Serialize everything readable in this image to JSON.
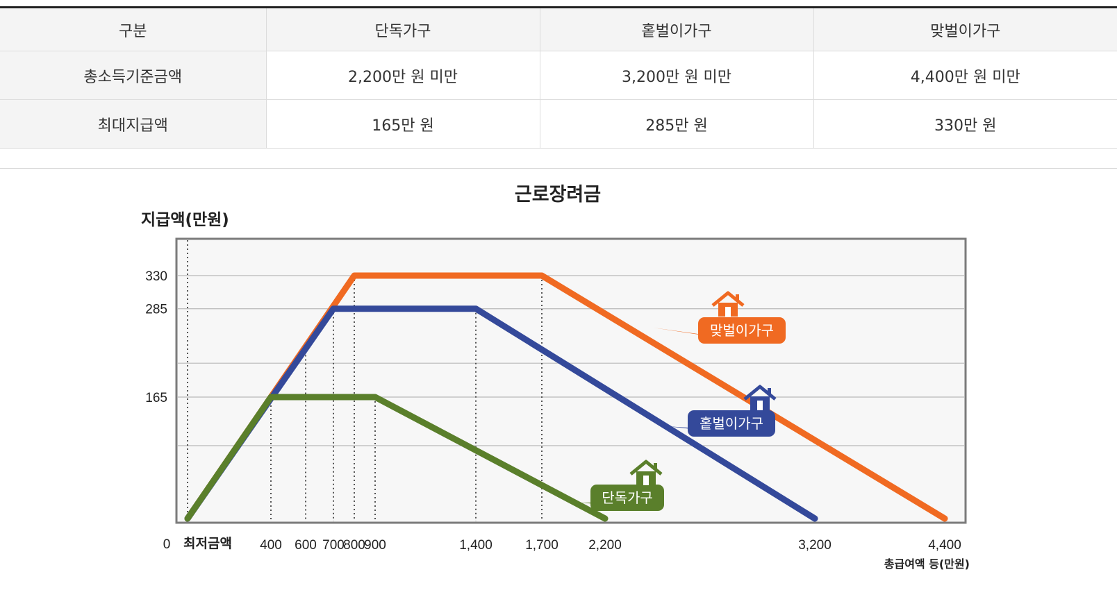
{
  "table": {
    "headers": [
      "구분",
      "단독가구",
      "홑벌이가구",
      "맞벌이가구"
    ],
    "rows": [
      [
        "총소득기준금액",
        "2,200만 원 미만",
        "3,200만 원 미만",
        "4,400만 원 미만"
      ],
      [
        "최대지급액",
        "165만 원",
        "285만 원",
        "330만 원"
      ]
    ]
  },
  "chart_data": {
    "type": "line",
    "title": "근로장려금",
    "ylabel": "지급액(만원)",
    "xlabel": "총급여액 등(만원)",
    "x_origin_label": "최저금액",
    "y_zero_label": "0",
    "xticks": [
      400,
      600,
      700,
      800,
      900,
      1400,
      1700,
      2200,
      3200,
      4400
    ],
    "xtick_labels": [
      "400",
      "600",
      "700",
      "800",
      "900",
      "1,400",
      "1,700",
      "2,200",
      "3,200",
      "4,400"
    ],
    "yticks": [
      165,
      285,
      330
    ],
    "ytick_labels": [
      "165",
      "285",
      "330"
    ],
    "xlim": [
      0,
      4500
    ],
    "ylim": [
      0,
      368
    ],
    "grid": true,
    "series": [
      {
        "name": "맞벌이가구",
        "color": "#f06a22",
        "icon": "house-icon",
        "points": [
          [
            0,
            0
          ],
          [
            800,
            330
          ],
          [
            1700,
            330
          ],
          [
            4400,
            0
          ]
        ]
      },
      {
        "name": "홑벌이가구",
        "color": "#34499a",
        "icon": "house-icon",
        "points": [
          [
            0,
            0
          ],
          [
            700,
            285
          ],
          [
            1400,
            285
          ],
          [
            3200,
            0
          ]
        ]
      },
      {
        "name": "단독가구",
        "color": "#5a7f2b",
        "icon": "house-icon",
        "points": [
          [
            0,
            0
          ],
          [
            400,
            165
          ],
          [
            900,
            165
          ],
          [
            2200,
            0
          ]
        ]
      }
    ]
  }
}
